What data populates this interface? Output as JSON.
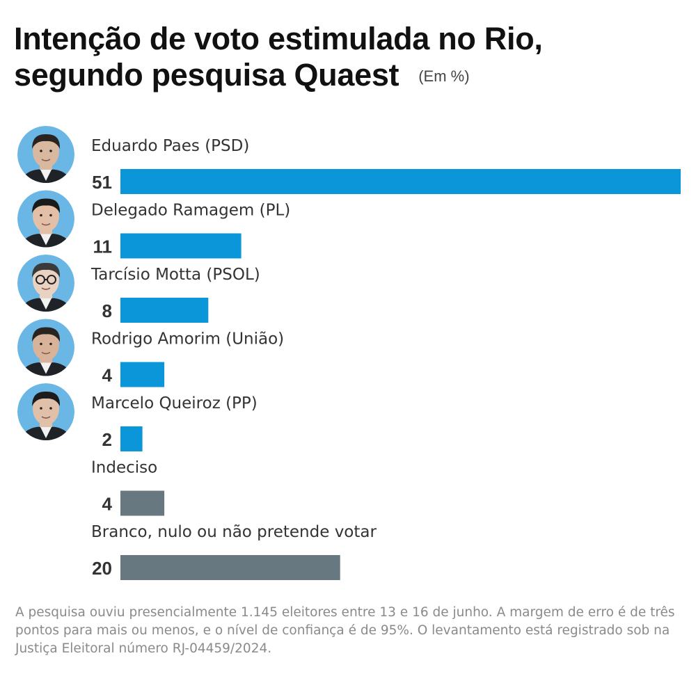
{
  "title_line1": "Intenção de voto estimulada no Rio,",
  "title_line2": "segundo pesquisa Quaest",
  "unit_label": "(Em %)",
  "colors": {
    "candidate": "#0a96d8",
    "other": "#677880",
    "avatar_bg": "#6ab7e6"
  },
  "chart_data": {
    "type": "bar",
    "orientation": "horizontal",
    "categories": [
      "Eduardo Paes (PSD)",
      "Delegado Ramagem (PL)",
      "Tarcísio Motta (PSOL)",
      "Rodrigo Amorim (União)",
      "Marcelo Queiroz (PP)",
      "Indeciso",
      "Branco, nulo ou não pretende votar"
    ],
    "values": [
      51,
      11,
      8,
      4,
      2,
      4,
      20
    ],
    "value_labels": [
      "51",
      "11",
      "8",
      "4",
      "2",
      "4",
      "20"
    ],
    "bar_colors": [
      "#0a96d8",
      "#0a96d8",
      "#0a96d8",
      "#0a96d8",
      "#0a96d8",
      "#677880",
      "#677880"
    ],
    "has_photo": [
      true,
      true,
      true,
      true,
      true,
      false,
      false
    ],
    "xlim": [
      0,
      51
    ]
  },
  "footnote": "A pesquisa ouviu presencialmente 1.145 eleitores entre 13 e 16 de junho. A margem de erro é de três pontos para mais ou menos, e o nível de confiança é de 95%. O levantamento está registrado sob na Justiça Eleitoral número RJ-04459/2024."
}
